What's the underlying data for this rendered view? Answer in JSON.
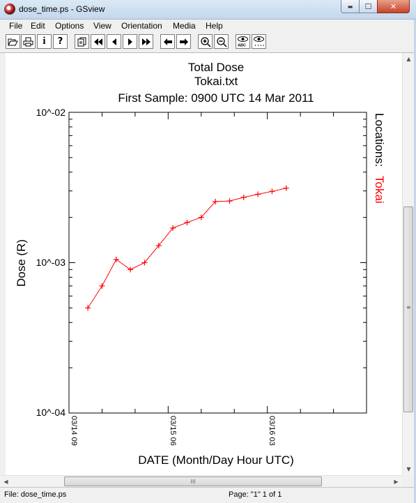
{
  "window": {
    "title": "dose_time.ps - GSview",
    "buttons": {
      "minimize": "▬",
      "maximize": "☐",
      "close": "✕"
    }
  },
  "menubar": [
    "File",
    "Edit",
    "Options",
    "View",
    "Orientation",
    "Media",
    "Help"
  ],
  "toolbar": {
    "icons": [
      "open-icon",
      "print-icon",
      "info-icon",
      "help-icon",
      "go-to-page-icon",
      "first-page-icon",
      "previous-page-icon",
      "next-page-icon",
      "last-page-icon",
      "back-icon",
      "forward-icon",
      "zoom-in-icon",
      "zoom-out-icon",
      "preview-text-icon",
      "preview-dots-icon"
    ],
    "info_label": "i",
    "help_label": "?"
  },
  "chart_data": {
    "type": "line",
    "title": "Total Dose",
    "subtitle": "Tokai.txt",
    "subtitle2": "First Sample: 0900 UTC 14 Mar 2011",
    "xlabel": "DATE (Month/Day Hour UTC)",
    "ylabel": "Dose (R)",
    "yscale": "log",
    "ylim": [
      0.0001,
      0.01
    ],
    "y_tick_labels": [
      "10^-02",
      "10^-03",
      "10^-04"
    ],
    "x_tick_labels": [
      "03/14 09",
      "03/15 06",
      "03/16 03"
    ],
    "x_hours_at_ticks": [
      0,
      21,
      42
    ],
    "xlim_hours": [
      0,
      63
    ],
    "legend_title": "Locations:",
    "series": [
      {
        "name": "Tokai",
        "color": "#ff0000",
        "marker": "+",
        "x_hours": [
          4,
          7,
          10,
          13,
          16,
          19,
          22,
          25,
          28,
          31,
          34,
          37,
          40,
          43,
          46
        ],
        "values": [
          0.0005,
          0.0007,
          0.00105,
          0.0009,
          0.001,
          0.0013,
          0.0017,
          0.00185,
          0.002,
          0.00255,
          0.00257,
          0.00272,
          0.00285,
          0.00298,
          0.00313
        ]
      }
    ]
  },
  "statusbar": {
    "file": "File: dose_time.ps",
    "page": "Page: \"1\"  1 of 1"
  },
  "scroll_grip": "III"
}
